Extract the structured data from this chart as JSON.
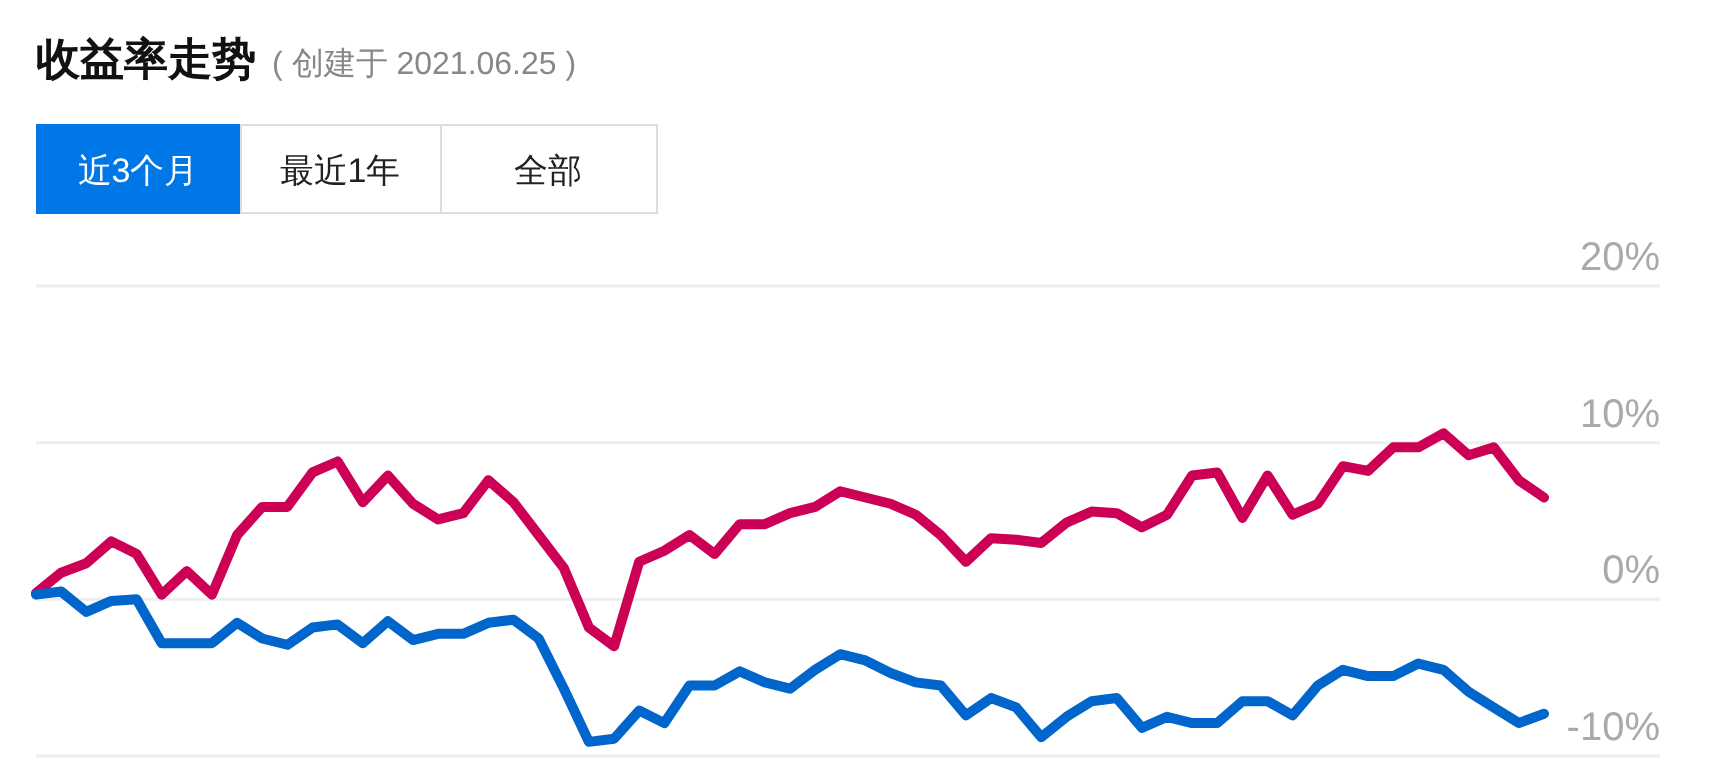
{
  "chart_data": {
    "type": "line",
    "title": "收益率走势",
    "subtitle": "( 创建于 2021.06.25 )",
    "annotations": [
      "近3个月",
      "最近1年",
      "全部"
    ],
    "categories": [
      null,
      null,
      null,
      null,
      null,
      null,
      null,
      null,
      null,
      null,
      null,
      null,
      null,
      null,
      null,
      null,
      null,
      null,
      null,
      null,
      null,
      null,
      null,
      null,
      null,
      null,
      null,
      null,
      null,
      null,
      null,
      null,
      null,
      null,
      null,
      null,
      null,
      null,
      null,
      null,
      null,
      null,
      null,
      null,
      null,
      null,
      null,
      null,
      null,
      null,
      null,
      null,
      null,
      null,
      null,
      null,
      null,
      null,
      null,
      null,
      null
    ],
    "series": [
      {
        "color": "#cc0055",
        "values": [
          0.4,
          1.7,
          2.3,
          3.7,
          2.9,
          0.3,
          1.8,
          0.3,
          4.1,
          5.9,
          5.9,
          8.1,
          8.8,
          6.2,
          7.9,
          6.1,
          5.1,
          5.5,
          7.6,
          6.2,
          4.1,
          2.0,
          -1.8,
          -3.0,
          2.4,
          3.1,
          4.1,
          2.9,
          4.8,
          4.8,
          5.5,
          5.9,
          6.9,
          6.5,
          6.1,
          5.4,
          4.1,
          2.4,
          3.9,
          3.8,
          3.6,
          4.9,
          5.6,
          5.5,
          4.6,
          5.4,
          7.9,
          8.1,
          5.2,
          7.9,
          5.4,
          6.1,
          8.5,
          8.2,
          9.7,
          9.7,
          10.6,
          9.2,
          9.7,
          7.6,
          6.5
        ]
      },
      {
        "color": "#0066cc",
        "values": [
          0.3,
          0.5,
          -0.8,
          -0.1,
          0.0,
          -2.8,
          -2.8,
          -2.8,
          -1.5,
          -2.5,
          -2.9,
          -1.8,
          -1.6,
          -2.8,
          -1.4,
          -2.6,
          -2.2,
          -2.2,
          -1.5,
          -1.3,
          -2.5,
          -5.7,
          -9.1,
          -8.9,
          -7.1,
          -7.9,
          -5.5,
          -5.5,
          -4.6,
          -5.3,
          -5.7,
          -4.5,
          -3.5,
          -3.9,
          -4.7,
          -5.3,
          -5.5,
          -7.4,
          -6.3,
          -6.9,
          -8.8,
          -7.5,
          -6.5,
          -6.3,
          -8.2,
          -7.5,
          -7.9,
          -7.9,
          -6.5,
          -6.5,
          -7.4,
          -5.5,
          -4.5,
          -4.9,
          -4.9,
          -4.1,
          -4.5,
          -5.9,
          -6.9,
          -7.9,
          -7.3
        ]
      }
    ],
    "ylim": [
      -10,
      20
    ],
    "yticks": [
      {
        "value": -10,
        "label": "-10%"
      },
      {
        "value": 0,
        "label": "0%"
      },
      {
        "value": 10,
        "label": "10%"
      },
      {
        "value": 20,
        "label": "20%"
      }
    ],
    "grid": "y"
  }
}
